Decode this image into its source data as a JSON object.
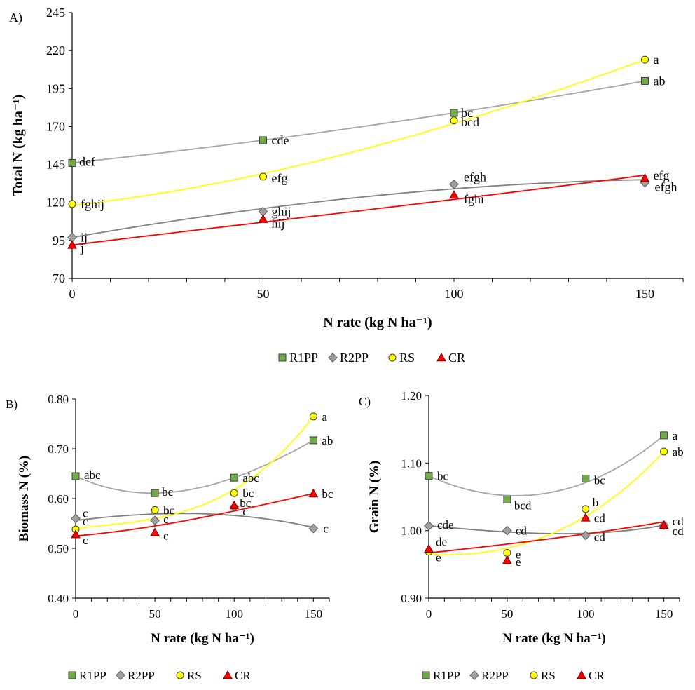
{
  "colors": {
    "R1PP": "#70ad47",
    "R2PP": "#808080",
    "RS": "#ffff00",
    "CR": "#ff0000",
    "R1PP_line": "#a6a6a6",
    "R2PP_line": "#808080",
    "RS_line": "#ffff00",
    "CR_line": "#ff0000",
    "axis": "#000000"
  },
  "legend_labels": [
    "R1PP",
    "R2PP",
    "RS",
    "CR"
  ],
  "chart_data": [
    {
      "panel": "A)",
      "type": "scatter",
      "xlabel": "N rate (kg N ha⁻¹)",
      "ylabel": "Total N (kg ha⁻¹)",
      "xlim": [
        0,
        160
      ],
      "ylim": [
        70,
        245
      ],
      "xticks": [
        0,
        50,
        100,
        150
      ],
      "yticks": [
        70,
        95,
        120,
        145,
        170,
        195,
        220,
        245
      ],
      "ytick_decimals": 0,
      "legend_position": "bottom",
      "x": [
        0,
        50,
        100,
        150
      ],
      "series": [
        {
          "name": "R1PP",
          "values": [
            146,
            161,
            179,
            200
          ],
          "labels": [
            "def",
            "cde",
            "bc",
            "ab"
          ],
          "fit": [
            146,
            161,
            179,
            200
          ]
        },
        {
          "name": "R2PP",
          "values": [
            97,
            114,
            132,
            133
          ],
          "labels": [
            "ij",
            "ghij",
            "efgh",
            "efgh"
          ],
          "fit": [
            97,
            116,
            129,
            135
          ]
        },
        {
          "name": "RS",
          "values": [
            119,
            137,
            174,
            214
          ],
          "labels": [
            "fghij",
            "efg",
            "bcd",
            "a"
          ],
          "fit": [
            118,
            139,
            172,
            214
          ]
        },
        {
          "name": "CR",
          "values": [
            92,
            109,
            125,
            136
          ],
          "labels": [
            "j",
            "hij",
            "fghi",
            "efg"
          ],
          "fit": [
            92,
            107,
            122,
            138
          ]
        }
      ]
    },
    {
      "panel": "B)",
      "type": "scatter",
      "xlabel": "N rate (kg N ha⁻¹)",
      "ylabel": "Biomass N (%)",
      "xlim": [
        0,
        160
      ],
      "ylim": [
        0.4,
        0.8
      ],
      "xticks": [
        0,
        50,
        100,
        150
      ],
      "yticks": [
        0.4,
        0.5,
        0.6,
        0.7,
        0.8
      ],
      "ytick_decimals": 2,
      "legend_position": "bottom",
      "x": [
        0,
        50,
        100,
        150
      ],
      "series": [
        {
          "name": "R1PP",
          "values": [
            0.645,
            0.611,
            0.642,
            0.717
          ],
          "labels": [
            "abc",
            "bc",
            "abc",
            "ab"
          ],
          "fit": [
            0.645,
            0.611,
            0.642,
            0.717
          ]
        },
        {
          "name": "R2PP",
          "values": [
            0.56,
            0.556,
            0.583,
            0.54
          ],
          "labels": [
            "c",
            "c",
            "c",
            "c"
          ],
          "fit": [
            0.556,
            0.569,
            0.566,
            0.542
          ]
        },
        {
          "name": "RS",
          "values": [
            0.538,
            0.577,
            0.611,
            0.765
          ],
          "labels": [
            "c",
            "bc",
            "bc",
            "a"
          ],
          "fit": [
            0.54,
            0.56,
            0.618,
            0.765
          ]
        },
        {
          "name": "CR",
          "values": [
            0.528,
            0.532,
            0.586,
            0.61
          ],
          "labels": [
            "c",
            "c",
            "bc",
            "bc"
          ],
          "fit": [
            0.525,
            0.545,
            0.575,
            0.61
          ]
        }
      ]
    },
    {
      "panel": "C)",
      "type": "scatter",
      "xlabel": "N rate (kg N ha⁻¹)",
      "ylabel": "Grain N (%)",
      "xlim": [
        0,
        160
      ],
      "ylim": [
        0.9,
        1.2
      ],
      "xticks": [
        0,
        50,
        100,
        150
      ],
      "yticks": [
        0.9,
        1.0,
        1.1,
        1.2
      ],
      "ytick_decimals": 2,
      "legend_position": "bottom",
      "x": [
        0,
        50,
        100,
        150
      ],
      "series": [
        {
          "name": "R1PP",
          "values": [
            1.081,
            1.046,
            1.077,
            1.141
          ],
          "labels": [
            "bc",
            "bcd",
            "bc",
            "a"
          ],
          "fit": [
            1.081,
            1.052,
            1.071,
            1.141
          ]
        },
        {
          "name": "R2PP",
          "values": [
            1.007,
            1.0,
            0.993,
            1.008
          ],
          "labels": [
            "cde",
            "cd",
            "cd",
            "cd"
          ],
          "fit": [
            1.007,
            0.998,
            0.996,
            1.008
          ]
        },
        {
          "name": "RS",
          "values": [
            0.969,
            0.967,
            1.032,
            1.117
          ],
          "labels": [
            "e",
            "e",
            "b",
            "ab"
          ],
          "fit": [
            0.965,
            0.974,
            1.021,
            1.117
          ]
        },
        {
          "name": "CR",
          "values": [
            0.973,
            0.956,
            1.019,
            1.008
          ],
          "labels": [
            "de",
            "e",
            "cd",
            "cd"
          ],
          "fit": [
            0.967,
            0.98,
            0.995,
            1.013
          ]
        }
      ]
    }
  ]
}
